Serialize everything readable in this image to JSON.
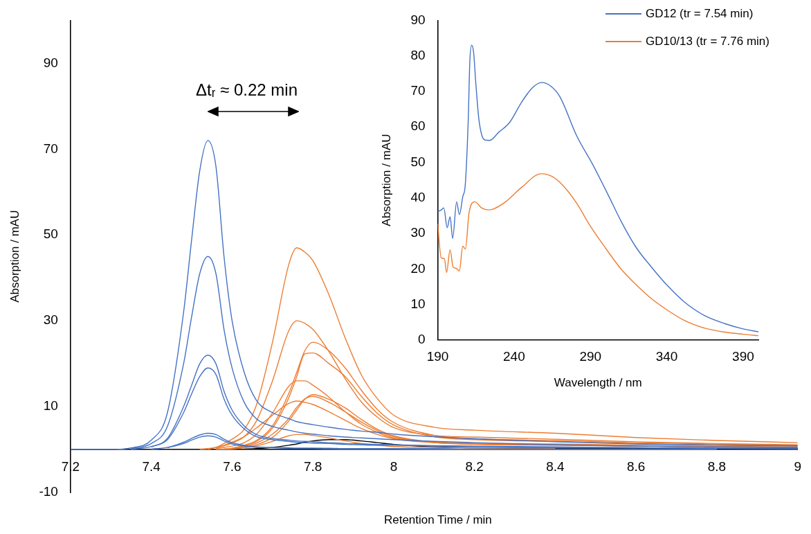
{
  "chart_data": [
    {
      "type": "line",
      "xlabel": "Retention Time / min",
      "ylabel": "Absorption / mAU",
      "xlim": [
        7.2,
        9
      ],
      "xticks": [
        7.2,
        7.4,
        7.6,
        7.8,
        8,
        8.2,
        8.4,
        8.6,
        8.8,
        9
      ],
      "ylim": [
        -10,
        100
      ],
      "yticks": [
        -10,
        10,
        30,
        50,
        70,
        90
      ],
      "grid": false,
      "legend": false,
      "marker": "none",
      "line_style": "solid",
      "annotations": [
        "Δtᵣ ≈ 0.22 min"
      ],
      "x": [
        7.2,
        7.3,
        7.35,
        7.4,
        7.44,
        7.48,
        7.5,
        7.52,
        7.54,
        7.56,
        7.58,
        7.6,
        7.63,
        7.66,
        7.7,
        7.74,
        7.76,
        7.78,
        7.8,
        7.84,
        7.88,
        7.92,
        7.96,
        8.0,
        8.1,
        8.2,
        8.4,
        8.6,
        8.8,
        9.0
      ],
      "series": [
        {
          "color": "#4472c4",
          "values": [
            0,
            0,
            0.4,
            2.2,
            8.6,
            32,
            49,
            65,
            72,
            66,
            45,
            30,
            18,
            11.5,
            8.6,
            7.2,
            6.5,
            6.1,
            5.8,
            5.2,
            4.7,
            4.3,
            4,
            3.6,
            3,
            2.5,
            1.8,
            1.3,
            1,
            0.9
          ]
        },
        {
          "color": "#4472c4",
          "values": [
            null,
            null,
            0.2,
            1.4,
            5.4,
            20,
            31,
            41,
            45,
            41,
            28,
            19,
            11,
            7.2,
            5.4,
            4.5,
            4.1,
            3.8,
            3.6,
            3.2,
            2.9,
            2.7,
            2.5,
            2.3,
            1.9,
            1.6,
            1.1,
            0.8,
            0.6,
            0.5
          ]
        },
        {
          "color": "#4472c4",
          "values": [
            null,
            null,
            0.1,
            0.7,
            2.6,
            10,
            15,
            20,
            22,
            20,
            13.6,
            9.2,
            5.5,
            3.5,
            2.6,
            2.2,
            2,
            1.9,
            1.8,
            1.6,
            1.4,
            1.3,
            1.2,
            1.1,
            0.9,
            0.8,
            0.6,
            0.4,
            0.3,
            0.3
          ]
        },
        {
          "color": "#4472c4",
          "values": [
            null,
            null,
            null,
            0.6,
            2.3,
            8.6,
            13,
            17,
            19,
            17.5,
            11.8,
            8,
            4.8,
            3,
            2.3,
            1.9,
            1.7,
            1.6,
            1.5,
            1.4,
            1.2,
            1.1,
            1,
            1,
            0.8,
            0.7,
            0.5,
            0.4,
            0.3,
            0.2
          ]
        },
        {
          "color": "#4472c4",
          "values": [
            null,
            null,
            null,
            0.1,
            0.5,
            1.7,
            2.6,
            3.4,
            3.8,
            3.5,
            2.4,
            1.6,
            1,
            0.6,
            0.5,
            0.4,
            0.3,
            0.3,
            0.3,
            0.3,
            0.2,
            0.2,
            0.2,
            0.2,
            0.2,
            0.1,
            0.1,
            0.1,
            0.1,
            null
          ]
        },
        {
          "color": "#4472c4",
          "values": [
            null,
            null,
            null,
            null,
            0.4,
            1.4,
            2.2,
            2.9,
            3.2,
            2.9,
            2,
            1.3,
            0.8,
            0.5,
            0.4,
            0.3,
            0.3,
            0.3,
            0.3,
            0.2,
            0.2,
            0.2,
            0.2,
            0.2,
            0.1,
            0.1,
            0.1,
            0.1,
            null,
            null
          ]
        },
        {
          "color": "#ed7d31",
          "values": [
            null,
            null,
            null,
            null,
            null,
            null,
            null,
            null,
            0.1,
            0.5,
            1.4,
            2.4,
            4.7,
            10.3,
            25,
            43,
            47,
            46,
            44,
            36,
            26,
            17.4,
            11.8,
            8,
            5.2,
            4.5,
            3.8,
            2.8,
            2.1,
            1.6
          ]
        },
        {
          "color": "#ed7d31",
          "values": [
            null,
            null,
            null,
            null,
            null,
            null,
            null,
            null,
            null,
            0.3,
            0.9,
            1.5,
            3,
            6.6,
            16,
            27.6,
            30,
            29.4,
            28,
            22.8,
            16.5,
            11.1,
            7.5,
            5.1,
            3.3,
            2.9,
            2.4,
            1.8,
            1.4,
            1.1
          ]
        },
        {
          "color": "#ed7d31",
          "values": [
            null,
            null,
            null,
            null,
            null,
            null,
            null,
            null,
            null,
            null,
            0.1,
            0.3,
            1,
            2.1,
            5.5,
            13,
            18,
            23,
            25,
            23,
            19,
            13.8,
            9.3,
            6.3,
            3.3,
            2.5,
            2.1,
            1.6,
            1.3,
            0.9
          ]
        },
        {
          "color": "#ed7d31",
          "values": [
            null,
            null,
            null,
            null,
            null,
            null,
            null,
            null,
            null,
            null,
            null,
            0.3,
            0.9,
            1.9,
            5,
            12,
            17,
            22.3,
            22.5,
            20,
            17,
            12.4,
            8.4,
            5.7,
            3,
            2.3,
            1.9,
            1.4,
            1.1,
            0.8
          ]
        },
        {
          "color": "#ed7d31",
          "values": [
            null,
            null,
            null,
            null,
            null,
            null,
            null,
            null,
            null,
            0.2,
            0.5,
            0.8,
            1.6,
            3.5,
            8.5,
            14.7,
            16,
            16,
            15,
            12.2,
            8.8,
            5.9,
            4,
            2.7,
            1.8,
            1.5,
            1.3,
            1,
            0.7,
            0.6
          ]
        },
        {
          "color": "#ed7d31",
          "values": [
            null,
            null,
            null,
            null,
            null,
            null,
            null,
            null,
            null,
            null,
            0.1,
            0.2,
            0.5,
            1.1,
            2.8,
            6.6,
            9.2,
            11.7,
            12.8,
            11.7,
            9.7,
            7,
            4.7,
            3.2,
            1.7,
            1.3,
            1.1,
            0.8,
            0.7,
            0.5
          ]
        },
        {
          "color": "#ed7d31",
          "values": [
            null,
            null,
            null,
            null,
            null,
            null,
            null,
            null,
            null,
            null,
            null,
            0.3,
            0.7,
            1.5,
            3.6,
            7.2,
            9.8,
            11.8,
            12.4,
            11,
            8.8,
            6.4,
            4.4,
            3,
            1.6,
            1.2,
            1,
            0.8,
            0.6,
            0.4
          ]
        },
        {
          "color": "#ed7d31",
          "values": [
            null,
            null,
            null,
            null,
            null,
            null,
            null,
            0.1,
            0.2,
            0.5,
            1,
            1.7,
            3,
            5,
            8,
            10.7,
            11.3,
            11,
            10.5,
            8.8,
            6.8,
            4.9,
            3.5,
            2.5,
            1.6,
            1.3,
            1.1,
            0.9,
            0.7,
            0.5
          ]
        },
        {
          "color": "#ed7d31",
          "values": [
            null,
            null,
            null,
            null,
            null,
            null,
            null,
            null,
            null,
            0.1,
            0.1,
            0.2,
            0.4,
            0.8,
            1.9,
            3.2,
            3.5,
            3.5,
            3.3,
            2.7,
            2,
            1.4,
            1,
            0.7,
            0.5,
            0.4,
            0.3,
            null,
            null,
            null
          ]
        },
        {
          "color": "#000000",
          "values": [
            null,
            null,
            null,
            null,
            null,
            null,
            null,
            null,
            null,
            null,
            null,
            null,
            0.1,
            0.2,
            0.5,
            1,
            1.3,
            1.7,
            2,
            2.3,
            2.3,
            2,
            1.6,
            1.2,
            0.6,
            0.4,
            0.3,
            0.3,
            0.2,
            0.2
          ]
        }
      ]
    },
    {
      "type": "line",
      "xlabel": "Wavelength / nm",
      "ylabel": "Absorption / mAU",
      "xlim": [
        190,
        400
      ],
      "xticks": [
        190,
        240,
        290,
        340,
        390
      ],
      "ylim": [
        0,
        90
      ],
      "yticks": [
        0,
        10,
        20,
        30,
        40,
        50,
        60,
        70,
        80,
        90
      ],
      "grid": false,
      "legend": "top right",
      "marker": "none",
      "line_style": "solid",
      "series": [
        {
          "name": "GD12 (tr = 7.54 min)",
          "color": "#4472c4",
          "x": [
            190,
            192,
            194,
            196.2,
            198.1,
            199.8,
            202.4,
            204.2,
            206.5,
            208,
            210,
            211,
            212.2,
            213.5,
            215,
            217,
            219,
            221,
            224,
            230,
            237,
            245,
            252,
            258,
            264,
            270,
            281,
            292,
            302,
            310,
            320,
            330,
            340,
            351.5,
            365,
            378,
            390,
            400
          ],
          "values": [
            36.2,
            36.5,
            37.2,
            31.6,
            34.7,
            28.6,
            38.9,
            35.3,
            40.5,
            43.4,
            62,
            78,
            83,
            81,
            72,
            62,
            57.5,
            56.3,
            56.2,
            58.5,
            61.2,
            67,
            71,
            72.5,
            71.5,
            68.5,
            57.5,
            49,
            40.5,
            33.5,
            26,
            20.5,
            15.5,
            10.7,
            6.8,
            4.6,
            3.1,
            2.3
          ]
        },
        {
          "name": "GD10/13 (tr = 7.76 min)",
          "color": "#ed7d31",
          "x": [
            190,
            192.3,
            194.4,
            195.8,
            198.1,
            200.1,
            202,
            204.2,
            206.4,
            208.1,
            210.6,
            214.3,
            218.7,
            223.4,
            233.5,
            245,
            257.7,
            265,
            272,
            281,
            290,
            300,
            310,
            320,
            330,
            340,
            351.5,
            365,
            378,
            390,
            400
          ],
          "values": [
            32.7,
            23.1,
            22.9,
            19,
            25.4,
            20.5,
            20.2,
            19.4,
            26.4,
            25.6,
            36,
            38.9,
            37.2,
            36.6,
            38.6,
            43,
            46.8,
            46,
            43.5,
            38.5,
            32,
            25.8,
            20,
            15.5,
            11.6,
            8.5,
            5.5,
            3.3,
            2.2,
            1.6,
            1.2
          ]
        }
      ]
    }
  ]
}
